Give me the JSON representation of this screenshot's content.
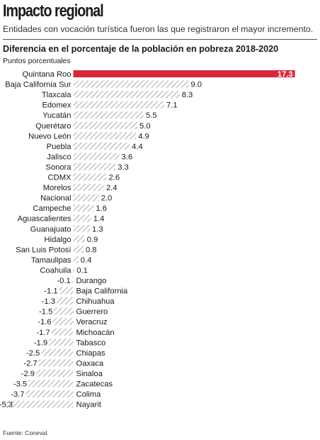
{
  "header": {
    "headline": "Impacto regional",
    "dek": "Entidades con vocación turística fueron las que registraron el mayor incremento."
  },
  "source": "Fuente: Coneval.",
  "colors": {
    "highlight": "#d9273a",
    "hatch": "#b5b5b5",
    "text": "#1a1a1a"
  },
  "chart_data": {
    "type": "bar",
    "orientation": "horizontal",
    "title": "Diferencia en el porcentaje de la población en pobreza 2018-2020",
    "subtitle": "Puntos porcentuales",
    "highlighted_category": "Quintana Roo",
    "categories": [
      "Quintana Roo",
      "Baja California Sur",
      "Tlaxcala",
      "Edomex",
      "Yucatán",
      "Querétaro",
      "Nuevo León",
      "Puebla",
      "Jalisco",
      "Sonora",
      "CDMX",
      "Morelos",
      "Nacional",
      "Campeche",
      "Aguascalientes",
      "Guanajuato",
      "Hidalgo",
      "San Luis Potosí",
      "Tamaulipas",
      "Coahuila",
      "Durango",
      "Baja California",
      "Chihuahua",
      "Guerrero",
      "Veracruz",
      "Michoacán",
      "Tabasco",
      "Chiapas",
      "Oaxaca",
      "Sinaloa",
      "Zacatecas",
      "Colima",
      "Nayarit"
    ],
    "values": [
      17.3,
      9.0,
      8.3,
      7.1,
      5.5,
      5.0,
      4.9,
      4.4,
      3.6,
      3.3,
      2.6,
      2.4,
      2.0,
      1.6,
      1.4,
      1.3,
      0.9,
      0.8,
      0.4,
      0.1,
      -0.1,
      -1.1,
      -1.3,
      -1.5,
      -1.6,
      -1.7,
      -1.9,
      -2.5,
      -2.7,
      -2.9,
      -3.5,
      -3.7,
      -5.3
    ],
    "value_labels": [
      "17.3",
      "9.0",
      "8.3",
      "7.1",
      "5.5",
      "5.0",
      "4.9",
      "4.4",
      "3.6",
      "3.3",
      "2.6",
      "2.4",
      "2.0",
      "1.6",
      "1.4",
      "1.3",
      "0.9",
      "0.8",
      "0.4",
      "0.1",
      "-0.1",
      "-1.1",
      "-1.3",
      "-1.5",
      "-1.6",
      "-1.7",
      "-1.9",
      "-2.5",
      "-2.7",
      "-2.9",
      "-3.5",
      "-3.7",
      "-5.3"
    ],
    "xlim": [
      -5.3,
      17.3
    ],
    "grid": false,
    "legend": "none"
  }
}
